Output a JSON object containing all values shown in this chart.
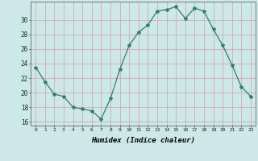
{
  "x": [
    0,
    1,
    2,
    3,
    4,
    5,
    6,
    7,
    8,
    9,
    10,
    11,
    12,
    13,
    14,
    15,
    16,
    17,
    18,
    19,
    20,
    21,
    22,
    23
  ],
  "y": [
    23.5,
    21.5,
    19.8,
    19.5,
    18.0,
    17.8,
    17.5,
    16.4,
    19.2,
    23.2,
    26.5,
    28.3,
    29.3,
    31.2,
    31.4,
    31.8,
    30.2,
    31.6,
    31.2,
    28.7,
    26.5,
    23.8,
    20.8,
    19.5
  ],
  "xlabel": "Humidex (Indice chaleur)",
  "xlim": [
    -0.5,
    23.5
  ],
  "ylim": [
    15.5,
    32.5
  ],
  "yticks": [
    16,
    18,
    20,
    22,
    24,
    26,
    28,
    30
  ],
  "xticks": [
    0,
    1,
    2,
    3,
    4,
    5,
    6,
    7,
    8,
    9,
    10,
    11,
    12,
    13,
    14,
    15,
    16,
    17,
    18,
    19,
    20,
    21,
    22,
    23
  ],
  "line_color": "#2e7d6e",
  "marker": "*",
  "marker_size": 3.0,
  "bg_color": "#cce8e8",
  "grid_color": "#d4a0a0",
  "spine_color": "#777777"
}
